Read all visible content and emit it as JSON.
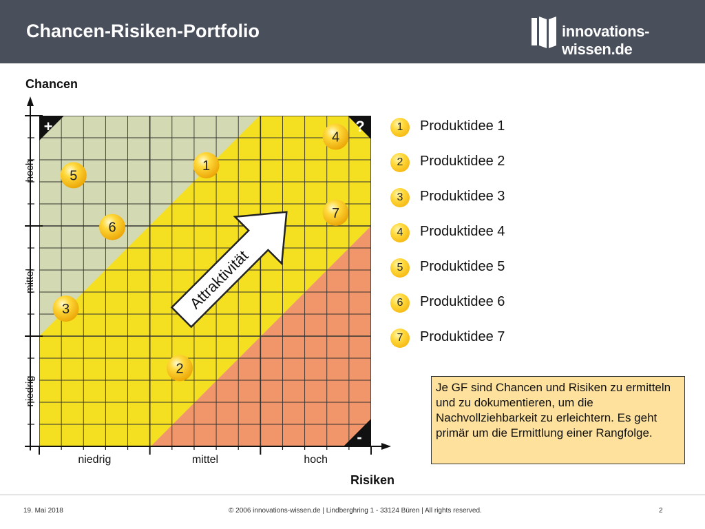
{
  "header": {
    "title": "Chancen-Risiken-Portfolio",
    "logo_text": "innovations-wissen.de"
  },
  "chart_data": {
    "type": "scatter",
    "ylabel": "Chancen",
    "xlabel": "Risiken",
    "x_categories": [
      "niedrig",
      "mittel",
      "hoch"
    ],
    "y_categories": [
      "niedrig",
      "mittel",
      "hoch"
    ],
    "xlim": [
      0,
      3
    ],
    "ylim": [
      0,
      3
    ],
    "corner_marks": {
      "top_left": "+",
      "top_right": "?",
      "bottom_right": "-"
    },
    "arrow_label": "Attraktivität",
    "zone_colors": {
      "green": "#d3d9b3",
      "yellow": "#f4df21",
      "orange": "#f1956a"
    },
    "points": [
      {
        "label": "1",
        "x": 1.51,
        "y": 2.55
      },
      {
        "label": "2",
        "x": 1.27,
        "y": 0.71
      },
      {
        "label": "3",
        "x": 0.24,
        "y": 1.25
      },
      {
        "label": "4",
        "x": 2.68,
        "y": 2.81
      },
      {
        "label": "5",
        "x": 0.31,
        "y": 2.46
      },
      {
        "label": "6",
        "x": 0.66,
        "y": 1.99
      },
      {
        "label": "7",
        "x": 2.68,
        "y": 2.12
      }
    ]
  },
  "legend": [
    {
      "num": "1",
      "label": "Produktidee 1"
    },
    {
      "num": "2",
      "label": "Produktidee 2"
    },
    {
      "num": "3",
      "label": "Produktidee 3"
    },
    {
      "num": "4",
      "label": "Produktidee 4"
    },
    {
      "num": "5",
      "label": "Produktidee 5"
    },
    {
      "num": "6",
      "label": "Produktidee 6"
    },
    {
      "num": "7",
      "label": "Produktidee 7"
    }
  ],
  "note": "Je GF sind Chancen und Risiken zu ermitteln und zu dokumentieren, um die Nachvollziehbarkeit zu erleichtern. Es geht primär um die Ermittlung einer Rangfolge.",
  "footer": {
    "date": "19. Mai 2018",
    "copyright": "© 2006 innovations-wissen.de | Lindberghring 1 - 33124 Büren | All rights reserved.",
    "page": "2"
  }
}
